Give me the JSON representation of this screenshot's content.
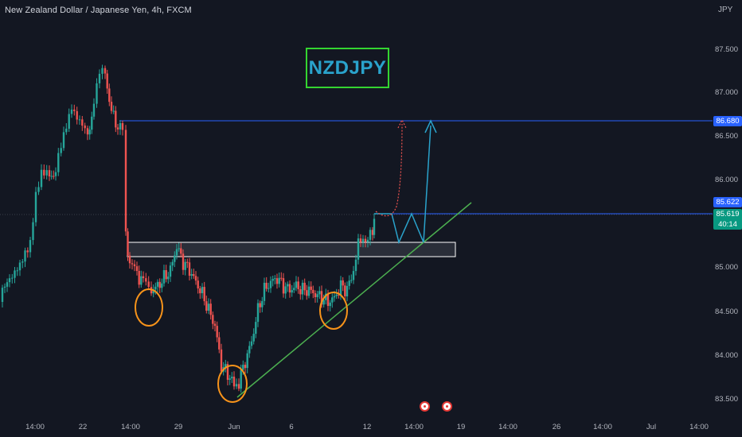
{
  "header": {
    "symbol_title": "New Zealand Dollar / Japanese Yen, 4h, FXCM",
    "currency": "JPY"
  },
  "annotation": {
    "box_text": "NZDJPY",
    "box_border_color": "#34d531",
    "box_text_color": "#2aa3cc"
  },
  "price_axis": {
    "ticks": [
      "87.500",
      "87.000",
      "86.500",
      "86.000",
      "85.000",
      "84.500",
      "84.000",
      "83.500"
    ],
    "target_badge": "86.680",
    "level_badge": "85.622",
    "current_price": "85.619",
    "countdown": "40:14"
  },
  "time_axis": {
    "ticks": [
      "14:00",
      "22",
      "14:00",
      "29",
      "Jun",
      "6",
      "12",
      "14:00",
      "19",
      "14:00",
      "26",
      "14:00",
      "Jul",
      "14:00"
    ]
  },
  "events": [
    {
      "icon": "economic-event-icon"
    },
    {
      "icon": "economic-event-icon"
    }
  ],
  "colors": {
    "background": "#131722",
    "up_candle": "#26a69a",
    "down_candle": "#ef5350",
    "target_line": "#2962ff",
    "trendline": "#4caf50",
    "projection_path": "#2aa3cc",
    "alt_projection": "#ef5350",
    "swing_circle": "#f7931a"
  }
}
